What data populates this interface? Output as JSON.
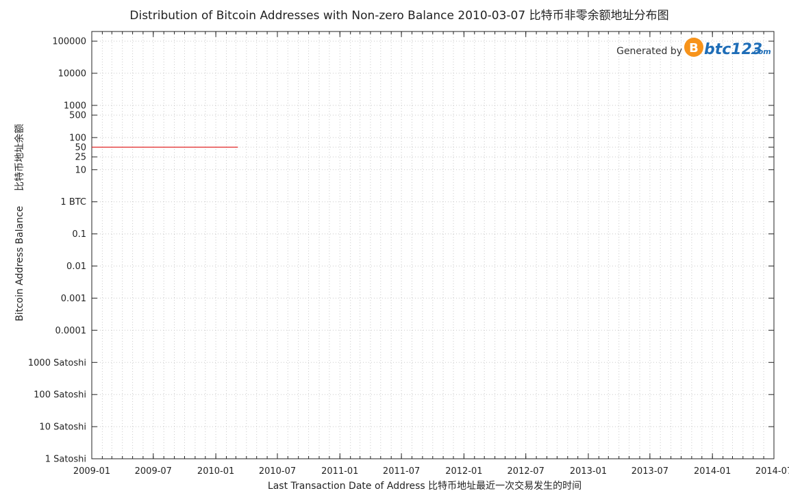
{
  "chart_data": {
    "type": "line",
    "title": "Distribution of Bitcoin Addresses with Non-zero Balance  2010-03-07   比特币非零余额地址分布图",
    "xlabel": "Last Transaction Date of Address    比特币地址最近一次交易发生的时间",
    "ylabel_cn": "比特币地址余额",
    "ylabel_en": "Bitcoin Address Balance",
    "y_scale": "log",
    "ylim": [
      1e-08,
      200000
    ],
    "xlim": [
      "2009-01-01",
      "2014-07-01"
    ],
    "grid": true,
    "x_ticks": [
      {
        "date": "2009-01-01",
        "label": "2009-01"
      },
      {
        "date": "2009-07-01",
        "label": "2009-07"
      },
      {
        "date": "2010-01-01",
        "label": "2010-01"
      },
      {
        "date": "2010-07-01",
        "label": "2010-07"
      },
      {
        "date": "2011-01-01",
        "label": "2011-01"
      },
      {
        "date": "2011-07-01",
        "label": "2011-07"
      },
      {
        "date": "2012-01-01",
        "label": "2012-01"
      },
      {
        "date": "2012-07-01",
        "label": "2012-07"
      },
      {
        "date": "2013-01-01",
        "label": "2013-01"
      },
      {
        "date": "2013-07-01",
        "label": "2013-07"
      },
      {
        "date": "2014-01-01",
        "label": "2014-01"
      },
      {
        "date": "2014-07-01",
        "label": "2014-07"
      }
    ],
    "y_ticks": [
      {
        "value": 100000,
        "label": "100000"
      },
      {
        "value": 10000,
        "label": "10000"
      },
      {
        "value": 1000,
        "label": "1000"
      },
      {
        "value": 500,
        "label": "500"
      },
      {
        "value": 100,
        "label": "100"
      },
      {
        "value": 50,
        "label": "50"
      },
      {
        "value": 25,
        "label": "25"
      },
      {
        "value": 10,
        "label": "10"
      },
      {
        "value": 1,
        "label": "1 BTC"
      },
      {
        "value": 0.1,
        "label": "0.1"
      },
      {
        "value": 0.01,
        "label": "0.01"
      },
      {
        "value": 0.001,
        "label": "0.001"
      },
      {
        "value": 0.0001,
        "label": "0.0001"
      },
      {
        "value": 1e-05,
        "label": "1000 Satoshi"
      },
      {
        "value": 1e-06,
        "label": "100 Satoshi"
      },
      {
        "value": 1e-07,
        "label": "10 Satoshi"
      },
      {
        "value": 1e-08,
        "label": "1 Satoshi"
      }
    ],
    "series": [
      {
        "color": "#e02020",
        "points": [
          {
            "x": "2009-01-01",
            "y": 50
          },
          {
            "x": "2010-03-07",
            "y": 50
          }
        ]
      }
    ]
  },
  "watermark": {
    "prefix": "Generated by",
    "logo_letter": "B",
    "logo_main": "btc123",
    "logo_suffix": ".com",
    "accent_color": "#f7931a",
    "brand_color": "#1e6db7"
  }
}
